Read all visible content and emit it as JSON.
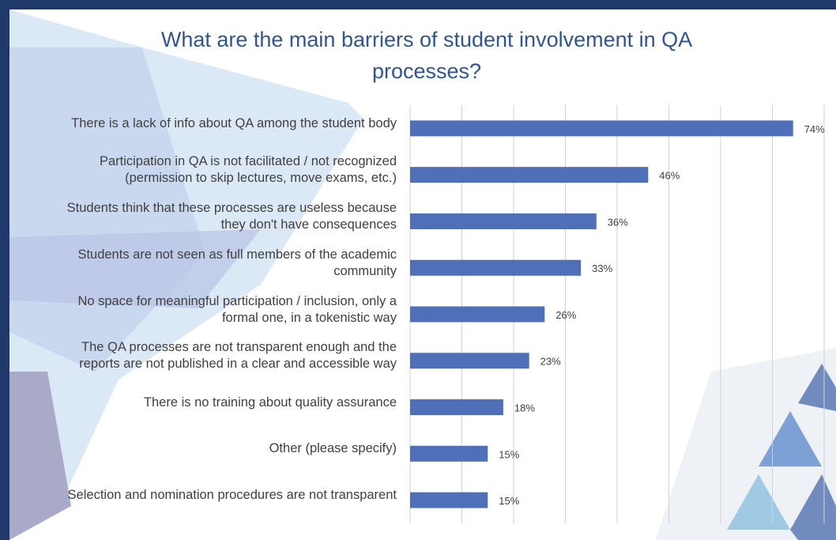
{
  "chart_data": {
    "type": "hbar",
    "title": "What are the main barriers of student involvement in QA\nprocesses?",
    "categories": [
      "There is a lack of info about QA among the student body",
      "Participation in QA is not facilitated / not recognized\n(permission to skip lectures, move exams, etc.)",
      "Students think that these processes are useless because\nthey don't have consequences",
      "Students are not seen as full members of the academic\ncommunity",
      "No space for meaningful participation / inclusion, only a\nformal one, in a tokenistic way",
      "The QA processes are not transparent enough and the\nreports are not published in a clear and accessible way",
      "There is no training about quality assurance",
      "Other (please specify)",
      "Selection and nomination procedures are not transparent"
    ],
    "values": [
      74,
      46,
      36,
      33,
      26,
      23,
      18,
      15,
      15
    ],
    "value_labels": [
      "74%",
      "46%",
      "36%",
      "33%",
      "26%",
      "23%",
      "18%",
      "15%",
      "15%"
    ],
    "color": "#4f6fb8",
    "xlim": [
      0,
      80
    ],
    "xticks": [
      0,
      10,
      20,
      30,
      40,
      50,
      60,
      70,
      80
    ],
    "grid": true
  }
}
